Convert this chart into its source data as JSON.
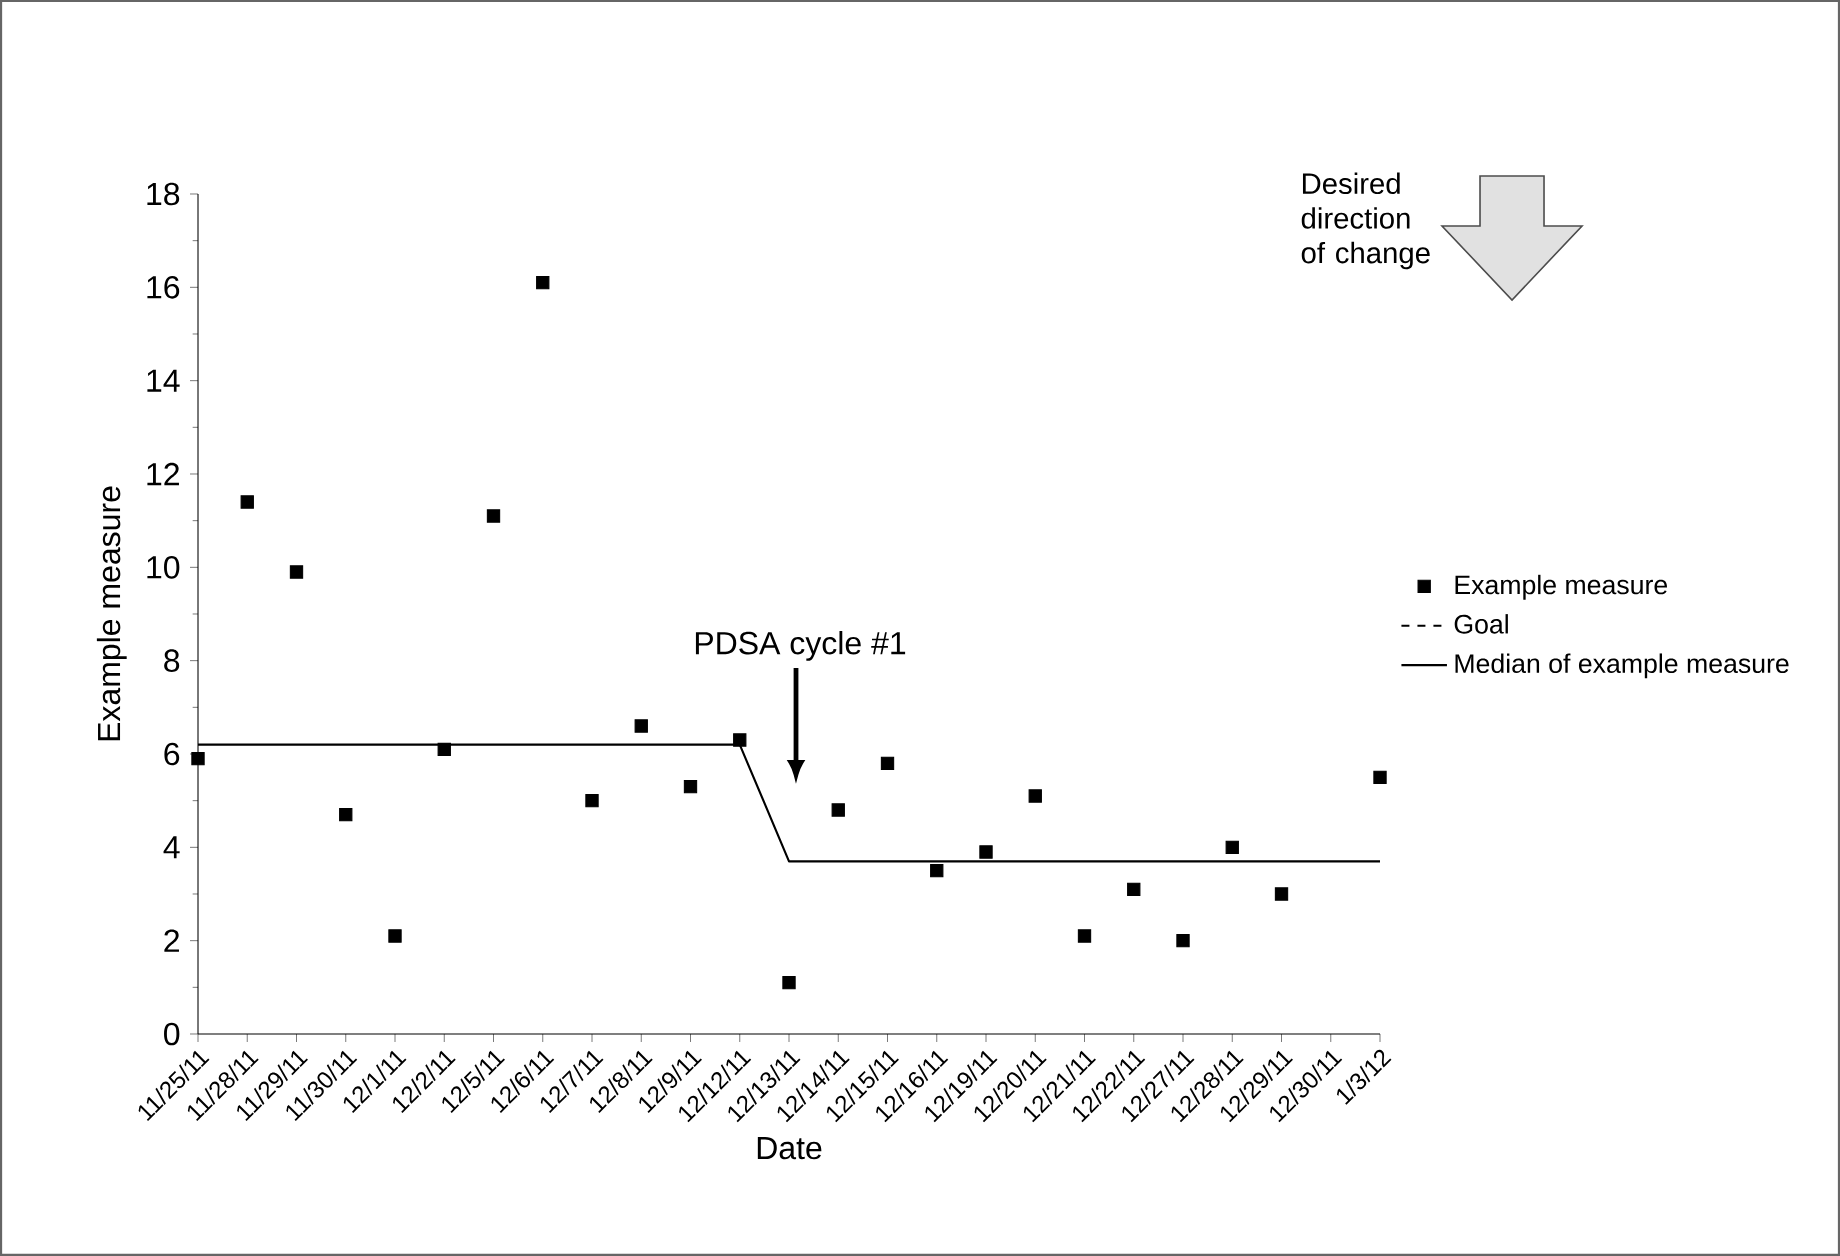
{
  "chart_data": {
    "type": "scatter",
    "xlabel": "Date",
    "ylabel": "Example measure",
    "categories": [
      "11/25/11",
      "11/28/11",
      "11/29/11",
      "11/30/11",
      "12/1/11",
      "12/2/11",
      "12/5/11",
      "12/6/11",
      "12/7/11",
      "12/8/11",
      "12/9/11",
      "12/12/11",
      "12/13/11",
      "12/14/11",
      "12/15/11",
      "12/16/11",
      "12/19/11",
      "12/20/11",
      "12/21/11",
      "12/22/11",
      "12/27/11",
      "12/28/11",
      "12/29/11",
      "12/30/11",
      "1/3/12"
    ],
    "series": [
      {
        "name": "Example measure",
        "marker": "square",
        "color": "#000000",
        "values": [
          5.9,
          11.4,
          9.9,
          4.7,
          2.1,
          6.1,
          11.1,
          16.1,
          5.0,
          6.6,
          5.3,
          6.3,
          1.1,
          4.8,
          5.8,
          3.5,
          3.9,
          5.1,
          2.1,
          3.1,
          2.0,
          4.0,
          3.0,
          null,
          5.5
        ]
      },
      {
        "name": "Goal",
        "type": "line",
        "line_style": "dashed",
        "color": "#000000",
        "values": [
          null,
          null,
          null,
          null,
          null,
          null,
          null,
          null,
          null,
          null,
          null,
          null,
          null,
          null,
          null,
          null,
          null,
          null,
          null,
          null,
          null,
          null,
          null,
          null,
          null
        ]
      },
      {
        "name": "Median of example measure",
        "type": "line",
        "line_style": "solid",
        "color": "#000000",
        "values": [
          6.2,
          6.2,
          6.2,
          6.2,
          6.2,
          6.2,
          6.2,
          6.2,
          6.2,
          6.2,
          6.2,
          6.2,
          3.7,
          3.7,
          3.7,
          3.7,
          3.7,
          3.7,
          3.7,
          3.7,
          3.7,
          3.7,
          3.7,
          3.7,
          3.7
        ]
      }
    ],
    "ylim": [
      0,
      18
    ],
    "yticks": [
      0,
      2,
      4,
      6,
      8,
      10,
      12,
      14,
      16,
      18
    ],
    "legend": "right",
    "annotations": [
      "PDSA cycle #1",
      "Desired direction of change"
    ]
  }
}
